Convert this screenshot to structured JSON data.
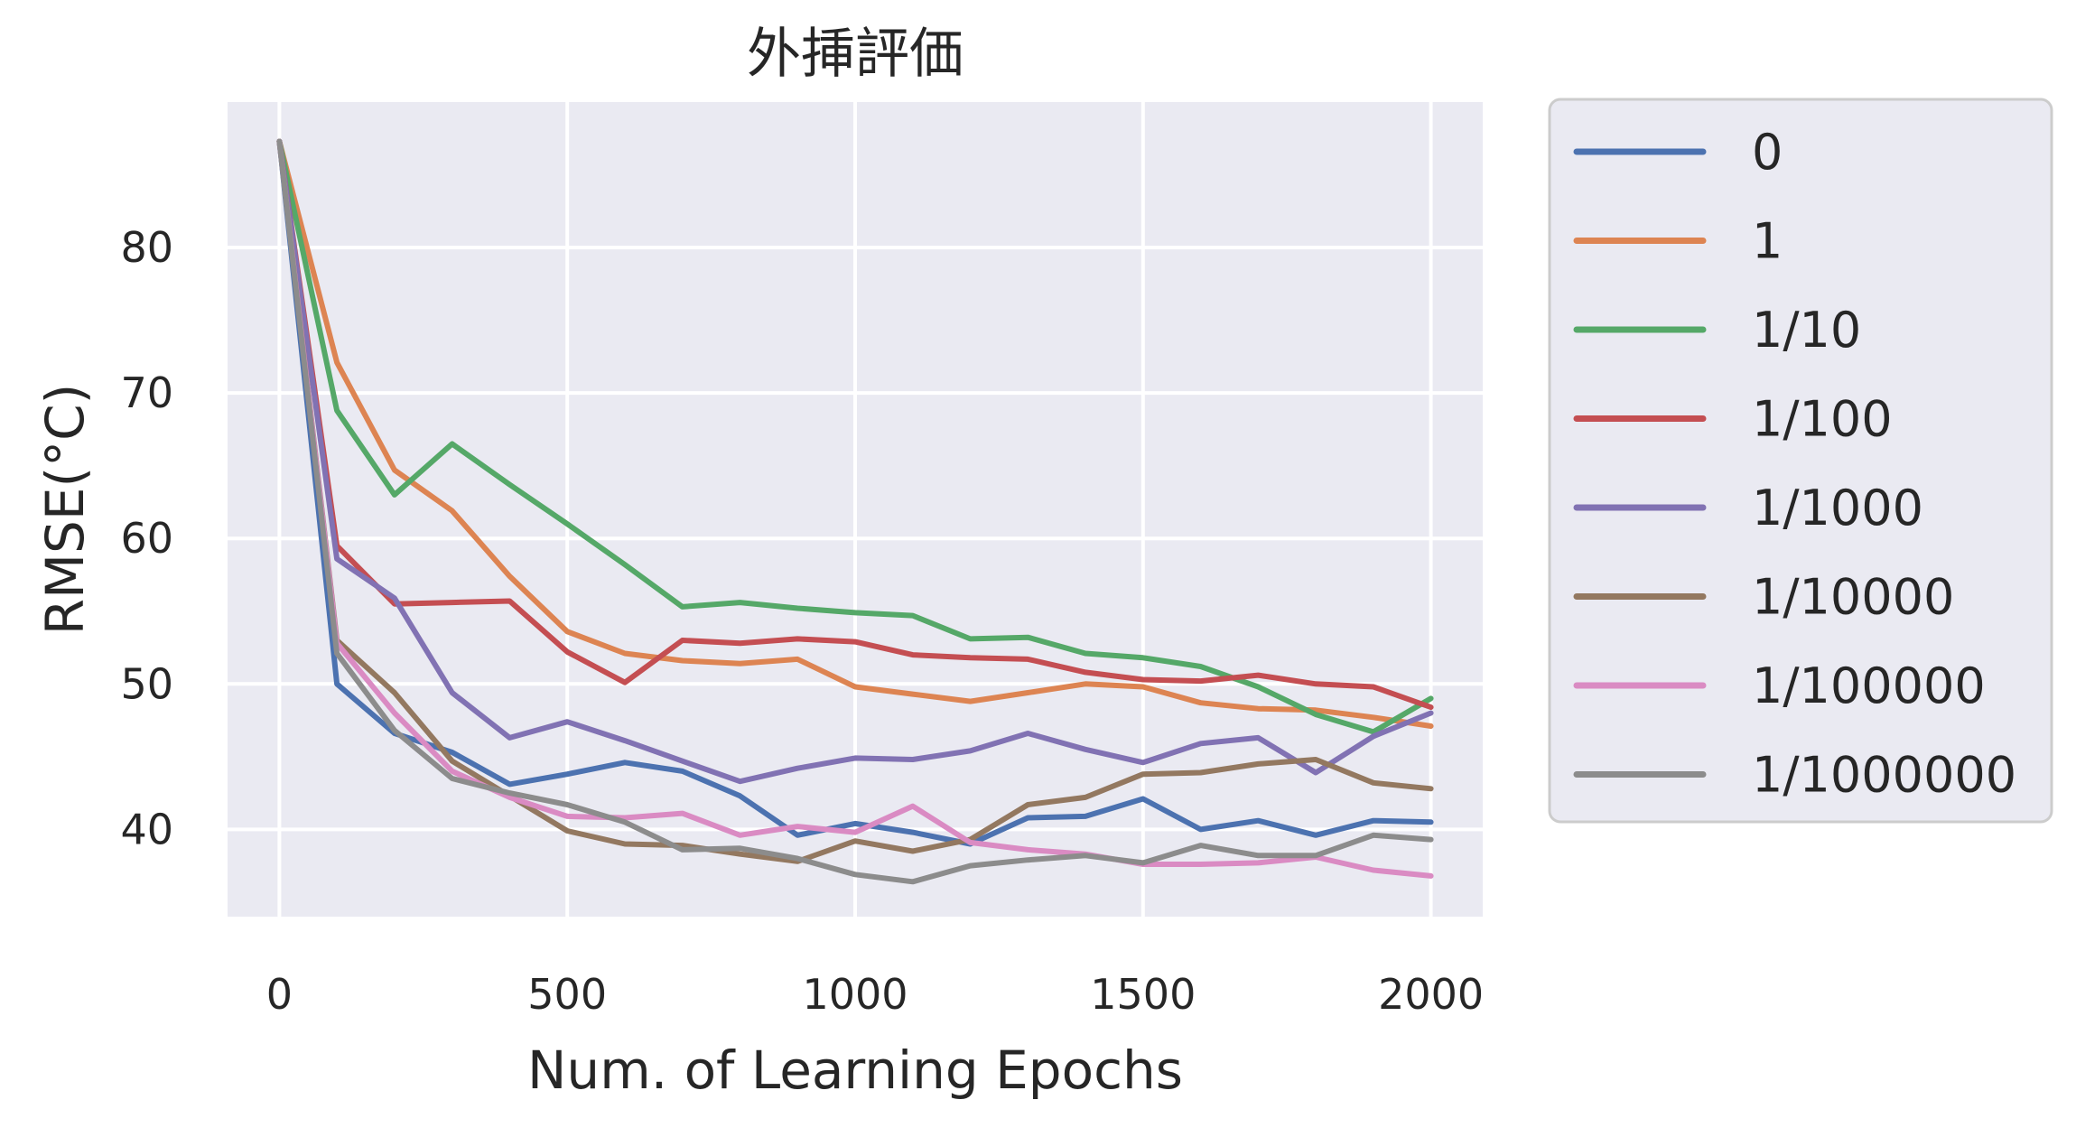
{
  "chart_data": {
    "type": "line",
    "title": "外挿評価",
    "xlabel": "Num. of Learning Epochs",
    "ylabel": "RMSE(°C)",
    "xlim": [
      -90,
      2090
    ],
    "ylim": [
      34,
      90
    ],
    "xticks": [
      0,
      500,
      1000,
      1500,
      2000
    ],
    "yticks": [
      40,
      50,
      60,
      70,
      80
    ],
    "grid": true,
    "background": "#eaeaf2",
    "legend_position": "outside-right",
    "x": [
      0,
      100,
      200,
      300,
      400,
      500,
      600,
      700,
      800,
      900,
      1000,
      1100,
      1200,
      1300,
      1400,
      1500,
      1600,
      1700,
      1800,
      1900,
      2000
    ],
    "series": [
      {
        "name": "0",
        "color": "#4c72b0",
        "values": [
          87.3,
          50.0,
          46.6,
          45.3,
          43.1,
          43.8,
          44.6,
          44.0,
          42.3,
          39.6,
          40.4,
          39.8,
          39.0,
          40.8,
          40.9,
          42.1,
          40.0,
          40.6,
          39.6,
          40.6,
          40.5
        ]
      },
      {
        "name": "1",
        "color": "#dd8452",
        "values": [
          87.3,
          72.1,
          64.7,
          61.9,
          57.4,
          53.6,
          52.1,
          51.6,
          51.4,
          51.7,
          49.8,
          49.3,
          48.8,
          49.4,
          50.0,
          49.8,
          48.7,
          48.3,
          48.2,
          47.7,
          47.1
        ]
      },
      {
        "name": "1/10",
        "color": "#55a868",
        "values": [
          87.3,
          68.8,
          63.0,
          66.5,
          63.7,
          61.0,
          58.2,
          55.3,
          55.6,
          55.2,
          54.9,
          54.7,
          53.1,
          53.2,
          52.1,
          51.8,
          51.2,
          49.8,
          47.9,
          46.7,
          49.0
        ]
      },
      {
        "name": "1/100",
        "color": "#c44e52",
        "values": [
          87.3,
          59.5,
          55.5,
          55.6,
          55.7,
          52.2,
          50.1,
          53.0,
          52.8,
          53.1,
          52.9,
          52.0,
          51.8,
          51.7,
          50.8,
          50.3,
          50.2,
          50.6,
          50.0,
          49.8,
          48.4
        ]
      },
      {
        "name": "1/1000",
        "color": "#8172b3",
        "values": [
          87.3,
          58.6,
          55.9,
          49.4,
          46.3,
          47.4,
          46.1,
          44.7,
          43.3,
          44.2,
          44.9,
          44.8,
          45.4,
          46.6,
          45.5,
          44.6,
          45.9,
          46.3,
          43.9,
          46.4,
          48.0
        ]
      },
      {
        "name": "1/10000",
        "color": "#937860",
        "values": [
          87.3,
          53.0,
          49.4,
          44.7,
          42.3,
          39.9,
          39.0,
          38.9,
          38.3,
          37.8,
          39.2,
          38.5,
          39.3,
          41.7,
          42.2,
          43.8,
          43.9,
          44.5,
          44.8,
          43.2,
          42.8
        ]
      },
      {
        "name": "1/100000",
        "color": "#da8bc3",
        "values": [
          87.3,
          52.8,
          48.0,
          44.0,
          42.2,
          40.9,
          40.8,
          41.1,
          39.6,
          40.2,
          39.8,
          41.6,
          39.1,
          38.6,
          38.3,
          37.6,
          37.6,
          37.7,
          38.1,
          37.2,
          36.8
        ]
      },
      {
        "name": "1/1000000",
        "color": "#8c8c8c",
        "values": [
          87.3,
          52.1,
          46.8,
          43.5,
          42.5,
          41.7,
          40.5,
          38.6,
          38.7,
          38.0,
          36.9,
          36.4,
          37.5,
          37.9,
          38.2,
          37.7,
          38.9,
          38.2,
          38.2,
          39.6,
          39.3
        ]
      }
    ]
  }
}
